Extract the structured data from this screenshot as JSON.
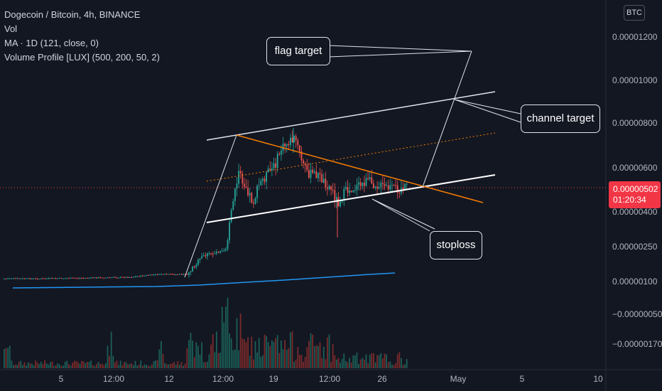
{
  "legend": {
    "symbol": "Dogecoin / Bitcoin, 4h, BINANCE",
    "vol": "Vol",
    "ma": "MA · 1D (121, close, 0)",
    "volume_profile": "Volume Profile [LUX] (500, 200, 50, 2)"
  },
  "currency_badge": "BTC",
  "annotations": {
    "flag_target": "flag target",
    "channel_target": "channel target",
    "stoploss": "stoploss"
  },
  "price_tag": {
    "price": "0.00000502",
    "countdown": "01:20:34"
  },
  "colors": {
    "background": "#131722",
    "up": "#26a69a",
    "down": "#ef5350",
    "ma_line": "#2196f3",
    "trendline_orange": "#f57c00",
    "price_line": "#f23645"
  },
  "y_axis_labels": [
    "0.00001200",
    "0.00001000",
    "0.00000800",
    "0.00000600",
    "0.00000400",
    "0.00000250",
    "0.00000100",
    "−0.00000050",
    "−0.00000170"
  ],
  "x_axis_labels": [
    "5",
    "12:00",
    "12",
    "12:00",
    "19",
    "12:00",
    "26",
    "May",
    "5",
    "10"
  ]
}
